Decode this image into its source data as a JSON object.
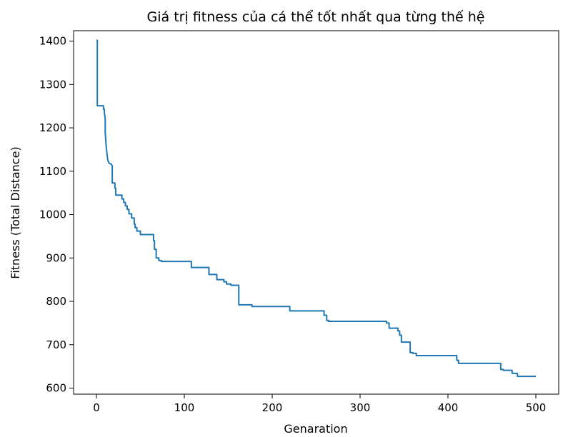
{
  "chart_data": {
    "type": "line",
    "title": "Giá trị fitness của cá thể tốt nhất qua từng thế hệ",
    "xlabel": "Genaration",
    "ylabel": "Fitness (Total Distance)",
    "xlim": [
      -26,
      526
    ],
    "ylim": [
      586,
      1424
    ],
    "xticks": [
      0,
      100,
      200,
      300,
      400,
      500
    ],
    "yticks": [
      600,
      700,
      800,
      900,
      1000,
      1100,
      1200,
      1300,
      1400
    ],
    "grid": false,
    "line_color": "#1f77b4",
    "series": [
      {
        "points": [
          [
            0,
            1402
          ],
          [
            1,
            1402
          ],
          [
            1,
            1251
          ],
          [
            8,
            1251
          ],
          [
            8,
            1243
          ],
          [
            9,
            1243
          ],
          [
            9,
            1236
          ],
          [
            10,
            1220
          ],
          [
            10,
            1190
          ],
          [
            11,
            1160
          ],
          [
            12,
            1140
          ],
          [
            13,
            1125
          ],
          [
            14,
            1120
          ],
          [
            15,
            1118
          ],
          [
            17,
            1116
          ],
          [
            18,
            1112
          ],
          [
            18,
            1073
          ],
          [
            21,
            1073
          ],
          [
            21,
            1061
          ],
          [
            22,
            1061
          ],
          [
            22,
            1045
          ],
          [
            29,
            1045
          ],
          [
            29,
            1036
          ],
          [
            31,
            1036
          ],
          [
            31,
            1028
          ],
          [
            33,
            1028
          ],
          [
            33,
            1020
          ],
          [
            35,
            1020
          ],
          [
            35,
            1012
          ],
          [
            37,
            1012
          ],
          [
            37,
            1002
          ],
          [
            40,
            1002
          ],
          [
            40,
            992
          ],
          [
            43,
            992
          ],
          [
            43,
            978
          ],
          [
            44,
            978
          ],
          [
            44,
            970
          ],
          [
            46,
            970
          ],
          [
            46,
            962
          ],
          [
            50,
            962
          ],
          [
            50,
            954
          ],
          [
            65,
            954
          ],
          [
            65,
            940
          ],
          [
            66,
            940
          ],
          [
            66,
            920
          ],
          [
            68,
            920
          ],
          [
            68,
            900
          ],
          [
            71,
            900
          ],
          [
            71,
            894
          ],
          [
            74,
            894
          ],
          [
            74,
            892
          ],
          [
            108,
            892
          ],
          [
            108,
            878
          ],
          [
            128,
            878
          ],
          [
            128,
            862
          ],
          [
            137,
            862
          ],
          [
            137,
            850
          ],
          [
            145,
            850
          ],
          [
            145,
            845
          ],
          [
            148,
            845
          ],
          [
            148,
            840
          ],
          [
            153,
            840
          ],
          [
            153,
            837
          ],
          [
            162,
            837
          ],
          [
            162,
            792
          ],
          [
            177,
            792
          ],
          [
            177,
            788
          ],
          [
            220,
            788
          ],
          [
            220,
            778
          ],
          [
            259,
            778
          ],
          [
            259,
            768
          ],
          [
            262,
            768
          ],
          [
            262,
            756
          ],
          [
            264,
            756
          ],
          [
            264,
            754
          ],
          [
            330,
            754
          ],
          [
            330,
            750
          ],
          [
            333,
            750
          ],
          [
            333,
            738
          ],
          [
            343,
            738
          ],
          [
            343,
            732
          ],
          [
            345,
            732
          ],
          [
            345,
            722
          ],
          [
            347,
            722
          ],
          [
            347,
            706
          ],
          [
            357,
            706
          ],
          [
            357,
            682
          ],
          [
            360,
            682
          ],
          [
            360,
            680
          ],
          [
            364,
            680
          ],
          [
            364,
            675
          ],
          [
            410,
            675
          ],
          [
            410,
            664
          ],
          [
            412,
            664
          ],
          [
            412,
            657
          ],
          [
            460,
            657
          ],
          [
            460,
            643
          ],
          [
            463,
            643
          ],
          [
            463,
            641
          ],
          [
            473,
            641
          ],
          [
            473,
            634
          ],
          [
            479,
            634
          ],
          [
            479,
            627
          ],
          [
            500,
            627
          ]
        ]
      }
    ]
  }
}
